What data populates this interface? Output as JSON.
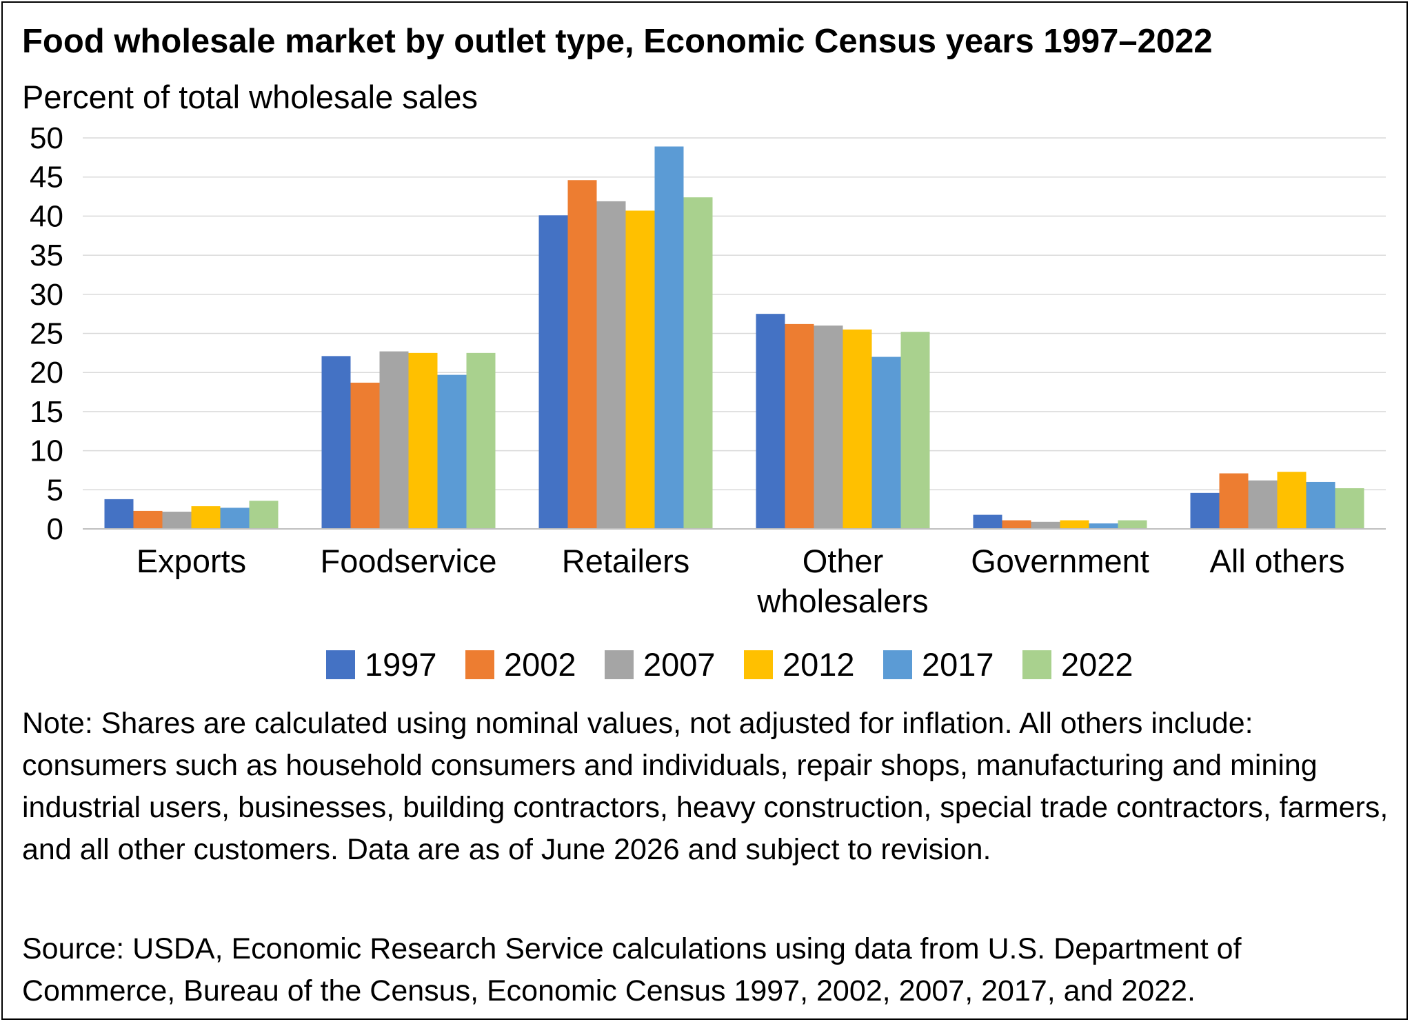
{
  "chart_data": {
    "type": "bar",
    "title": "Food wholesale market by outlet type, Economic Census years 1997–2022",
    "ylabel": "Percent of total wholesale sales",
    "xlabel": "",
    "ylim": [
      0,
      50
    ],
    "yticks": [
      0,
      5,
      10,
      15,
      20,
      25,
      30,
      35,
      40,
      45,
      50
    ],
    "grid": true,
    "legend_position": "bottom",
    "categories": [
      [
        "Exports"
      ],
      [
        "Foodservice"
      ],
      [
        "Retailers"
      ],
      [
        "Other",
        "wholesalers"
      ],
      [
        "Government"
      ],
      [
        "All others"
      ]
    ],
    "series": [
      {
        "name": "1997",
        "color": "#4472C4",
        "values": [
          3.8,
          22.1,
          40.1,
          27.5,
          1.8,
          4.6
        ]
      },
      {
        "name": "2002",
        "color": "#ED7D31",
        "values": [
          2.3,
          18.7,
          44.6,
          26.2,
          1.1,
          7.1
        ]
      },
      {
        "name": "2007",
        "color": "#A5A5A5",
        "values": [
          2.2,
          22.7,
          41.9,
          26.0,
          0.9,
          6.2
        ]
      },
      {
        "name": "2012",
        "color": "#FFC000",
        "values": [
          2.9,
          22.5,
          40.7,
          25.5,
          1.1,
          7.3
        ]
      },
      {
        "name": "2017",
        "color": "#5B9BD5",
        "values": [
          2.7,
          19.7,
          48.9,
          22.0,
          0.7,
          6.0
        ]
      },
      {
        "name": "2022",
        "color": "#A9D18E",
        "values": [
          3.6,
          22.5,
          42.4,
          25.2,
          1.1,
          5.2
        ]
      }
    ],
    "note": "Note: Shares are calculated using nominal values, not adjusted for inflation. All others include: consumers such as household consumers and individuals, repair shops, manufacturing and mining industrial users, businesses, building contractors, heavy construction, special trade contractors, farmers, and all other customers. Data are as of June 2026 and subject to revision.",
    "source": "Source: USDA, Economic Research Service calculations using data from U.S. Department of Commerce, Bureau of the Census, Economic Census 1997, 2002, 2007, 2017, and 2022."
  }
}
